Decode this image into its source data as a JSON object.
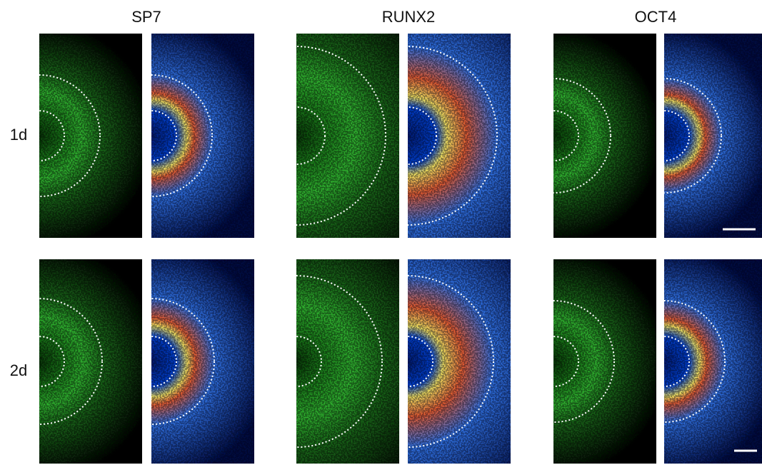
{
  "columns": [
    "SP7",
    "RUNX2",
    "OCT4"
  ],
  "rows": [
    "1d",
    "2d"
  ]
}
